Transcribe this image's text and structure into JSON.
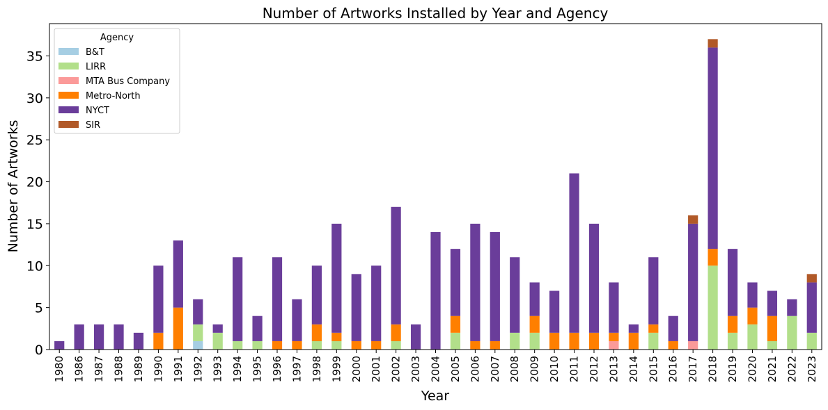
{
  "chart_data": {
    "type": "bar",
    "stacked": true,
    "title": "Number of Artworks Installed by Year and Agency",
    "xlabel": "Year",
    "ylabel": "Number of Artworks",
    "ylim": [
      0,
      38.85
    ],
    "yticks": [
      0,
      5,
      10,
      15,
      20,
      25,
      30,
      35
    ],
    "grid": false,
    "legend_title": "Agency",
    "legend_position": "top-left",
    "categories": [
      "1980",
      "1986",
      "1987",
      "1988",
      "1989",
      "1990",
      "1991",
      "1992",
      "1993",
      "1994",
      "1995",
      "1996",
      "1997",
      "1998",
      "1999",
      "2000",
      "2001",
      "2002",
      "2003",
      "2004",
      "2005",
      "2006",
      "2007",
      "2008",
      "2009",
      "2010",
      "2011",
      "2012",
      "2013",
      "2014",
      "2015",
      "2016",
      "2017",
      "2018",
      "2019",
      "2020",
      "2021",
      "2022",
      "2023"
    ],
    "series": [
      {
        "name": "B&T",
        "color": "#a6cee3",
        "values": [
          0,
          0,
          0,
          0,
          0,
          0,
          0,
          1,
          0,
          0,
          0,
          0,
          0,
          0,
          0,
          0,
          0,
          0,
          0,
          0,
          0,
          0,
          0,
          0,
          0,
          0,
          0,
          0,
          0,
          0,
          0,
          0,
          0,
          0,
          0,
          0,
          0,
          0,
          0
        ]
      },
      {
        "name": "LIRR",
        "color": "#b2df8a",
        "values": [
          0,
          0,
          0,
          0,
          0,
          0,
          0,
          2,
          2,
          1,
          1,
          0,
          0,
          1,
          1,
          0,
          0,
          1,
          0,
          0,
          2,
          0,
          0,
          2,
          2,
          0,
          0,
          0,
          0,
          0,
          2,
          0,
          0,
          10,
          2,
          3,
          1,
          4,
          2
        ]
      },
      {
        "name": "MTA Bus Company",
        "color": "#fb9a99",
        "values": [
          0,
          0,
          0,
          0,
          0,
          0,
          0,
          0,
          0,
          0,
          0,
          0,
          0,
          0,
          0,
          0,
          0,
          0,
          0,
          0,
          0,
          0,
          0,
          0,
          0,
          0,
          0,
          0,
          1,
          0,
          0,
          0,
          1,
          0,
          0,
          0,
          0,
          0,
          0
        ]
      },
      {
        "name": "Metro-North",
        "color": "#ff7f00",
        "values": [
          0,
          0,
          0,
          0,
          0,
          2,
          5,
          0,
          0,
          0,
          0,
          1,
          1,
          2,
          1,
          1,
          1,
          2,
          0,
          0,
          2,
          1,
          1,
          0,
          2,
          2,
          2,
          2,
          1,
          2,
          1,
          1,
          0,
          2,
          2,
          2,
          3,
          0,
          0
        ]
      },
      {
        "name": "NYCT",
        "color": "#6a3d9a",
        "values": [
          1,
          3,
          3,
          3,
          2,
          8,
          8,
          3,
          1,
          10,
          3,
          10,
          5,
          7,
          13,
          8,
          9,
          14,
          3,
          14,
          8,
          14,
          13,
          9,
          4,
          5,
          19,
          13,
          6,
          1,
          8,
          3,
          14,
          24,
          8,
          3,
          3,
          2,
          6
        ]
      },
      {
        "name": "SIR",
        "color": "#b15928",
        "values": [
          0,
          0,
          0,
          0,
          0,
          0,
          0,
          0,
          0,
          0,
          0,
          0,
          0,
          0,
          0,
          0,
          0,
          0,
          0,
          0,
          0,
          0,
          0,
          0,
          0,
          0,
          0,
          0,
          0,
          0,
          0,
          0,
          1,
          1,
          0,
          0,
          0,
          0,
          1
        ]
      }
    ]
  }
}
